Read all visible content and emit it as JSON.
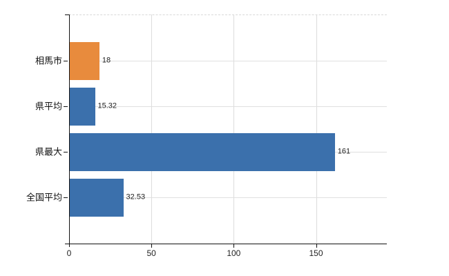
{
  "chart_data": {
    "type": "bar",
    "orientation": "horizontal",
    "title": "",
    "xlabel": "",
    "ylabel": "",
    "categories": [
      "相馬市",
      "県平均",
      "県最大",
      "全国平均"
    ],
    "values": [
      18,
      15.32,
      161,
      32.53
    ],
    "value_labels": [
      "18",
      "15.32",
      "161",
      "32.53"
    ],
    "series_colors": [
      "#e88b3d",
      "#3b70ac",
      "#3b70ac",
      "#3b70ac"
    ],
    "x_ticks": [
      0,
      50,
      100,
      150
    ],
    "x_tick_labels": [
      "0",
      "50",
      "100",
      "150"
    ],
    "xlim": [
      0,
      193
    ],
    "grid": true,
    "legend": "none"
  },
  "colors": {
    "highlight_bar": "#e88b3d",
    "default_bar": "#3b70ac",
    "gridline": "#dcdcdc",
    "axis": "#111111",
    "text": "#222222",
    "background": "#ffffff"
  }
}
